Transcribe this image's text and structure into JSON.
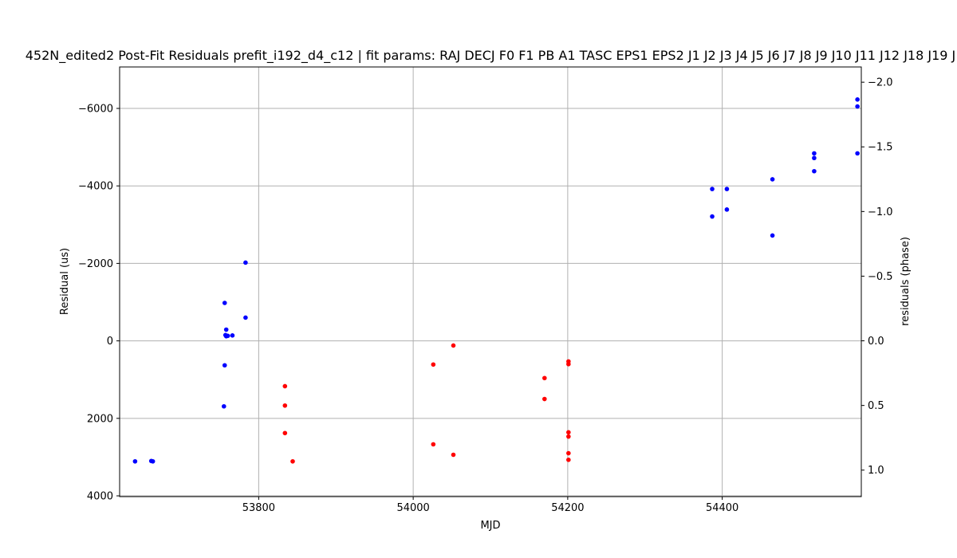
{
  "chart_data": {
    "type": "scatter",
    "title": "452N_edited2 Post-Fit Residuals prefit_i192_d4_c12 | fit params: RAJ DECJ F0 F1 PB A1 TASC EPS1 EPS2 J1 J2 J3 J4 J5 J6 J7 J8 J9 J10 J11 J12 J18 J19 J",
    "xlabel": "MJD",
    "ylabel": "Residual (us)",
    "y2label": "residuals (phase)",
    "xlim": [
      53620,
      54580
    ],
    "ylim": [
      4020,
      -7070
    ],
    "y2lim": [
      1.205,
      -2.118
    ],
    "grid": true,
    "x_ticks": [
      53800,
      54000,
      54200,
      54400
    ],
    "y_ticks": [
      4000,
      2000,
      0,
      -2000,
      -4000,
      -6000
    ],
    "y_tick_labels": [
      "4000",
      "2000",
      "0",
      "−2000",
      "−4000",
      "−6000"
    ],
    "y2_ticks": [
      1.0,
      0.5,
      0.0,
      -0.5,
      -1.0,
      -1.5,
      -2.0
    ],
    "y2_tick_labels": [
      "1.0",
      "0.5",
      "0.0",
      "−0.5",
      "−1.0",
      "−1.5",
      "−2.0"
    ],
    "series": [
      {
        "color": "#0000ff",
        "points": [
          [
            53640,
            3110
          ],
          [
            53661,
            3100
          ],
          [
            53663,
            3110
          ],
          [
            53755,
            1690
          ],
          [
            53756,
            630
          ],
          [
            53756,
            -980
          ],
          [
            53758,
            -290
          ],
          [
            53757,
            -150
          ],
          [
            53760,
            -130
          ],
          [
            53758,
            -120
          ],
          [
            53766,
            -140
          ],
          [
            53783,
            -2020
          ],
          [
            53783,
            -600
          ],
          [
            54387,
            -3920
          ],
          [
            54387,
            -3210
          ],
          [
            54406,
            -3920
          ],
          [
            54406,
            -3390
          ],
          [
            54465,
            -4170
          ],
          [
            54465,
            -2720
          ],
          [
            54519,
            -4840
          ],
          [
            54519,
            -4720
          ],
          [
            54519,
            -4380
          ],
          [
            54575,
            -6230
          ],
          [
            54575,
            -6050
          ],
          [
            54575,
            -4840
          ]
        ]
      },
      {
        "color": "#ff0000",
        "points": [
          [
            53834,
            1170
          ],
          [
            53834,
            1670
          ],
          [
            53834,
            2380
          ],
          [
            53844,
            3110
          ],
          [
            54026,
            610
          ],
          [
            54026,
            2670
          ],
          [
            54052,
            120
          ],
          [
            54052,
            2940
          ],
          [
            54170,
            960
          ],
          [
            54170,
            1500
          ],
          [
            54201,
            530
          ],
          [
            54201,
            600
          ],
          [
            54201,
            2360
          ],
          [
            54201,
            2470
          ],
          [
            54201,
            2900
          ],
          [
            54201,
            3070
          ]
        ]
      }
    ]
  }
}
